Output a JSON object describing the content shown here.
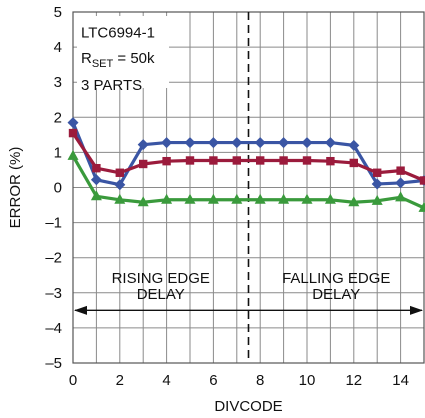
{
  "chart_data": {
    "type": "line",
    "xlabel": "DIVCODE",
    "ylabel": "ERROR (%)",
    "xlim": [
      0,
      15
    ],
    "ylim": [
      -5,
      5
    ],
    "x_ticks": [
      "0",
      "2",
      "4",
      "6",
      "8",
      "10",
      "12",
      "14"
    ],
    "y_ticks": [
      "–5",
      "–4",
      "–3",
      "–2",
      "–1",
      "0",
      "1",
      "2",
      "3",
      "4",
      "5"
    ],
    "grid": true,
    "legend": {
      "line1": "LTC6994-1",
      "line2_main": "R",
      "line2_sub": "SET",
      "line2_rest": " = 50k",
      "line3": "3 PARTS"
    },
    "divider_x": 7.5,
    "annotations": {
      "rising_1": "RISING EDGE",
      "rising_2": "DELAY",
      "falling_1": "FALLING EDGE",
      "falling_2": "DELAY"
    },
    "x": [
      0,
      1,
      2,
      3,
      4,
      5,
      6,
      7,
      8,
      9,
      10,
      11,
      12,
      13,
      14,
      15
    ],
    "series": [
      {
        "color": "#3a55a4",
        "marker": "diamond",
        "values": [
          1.85,
          0.22,
          0.08,
          1.22,
          1.28,
          1.28,
          1.28,
          1.28,
          1.28,
          1.28,
          1.28,
          1.28,
          1.2,
          0.1,
          0.13,
          0.2
        ]
      },
      {
        "color": "#9b1b3c",
        "marker": "square",
        "values": [
          1.55,
          0.55,
          0.42,
          0.67,
          0.75,
          0.77,
          0.77,
          0.77,
          0.77,
          0.77,
          0.77,
          0.75,
          0.7,
          0.42,
          0.48,
          0.2
        ]
      },
      {
        "color": "#3a9a3c",
        "marker": "triangle",
        "values": [
          0.9,
          -0.25,
          -0.35,
          -0.42,
          -0.35,
          -0.35,
          -0.35,
          -0.35,
          -0.35,
          -0.35,
          -0.35,
          -0.35,
          -0.42,
          -0.38,
          -0.28,
          -0.58
        ]
      }
    ]
  }
}
